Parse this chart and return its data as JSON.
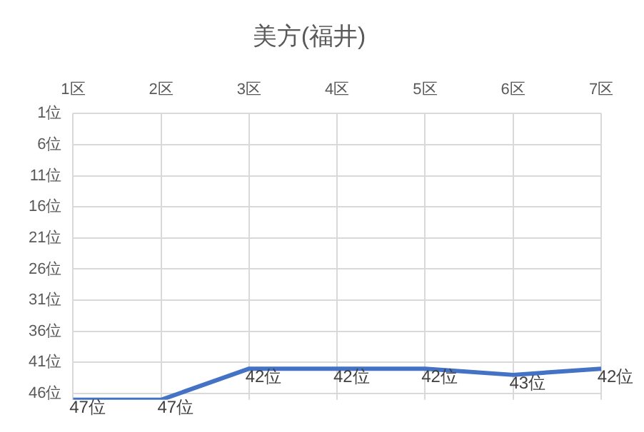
{
  "chart_data": {
    "type": "line",
    "title": "美方(福井)",
    "categories": [
      "1区",
      "2区",
      "3区",
      "4区",
      "5区",
      "6区",
      "7区"
    ],
    "series": [
      {
        "color": "#4472c4",
        "values": [
          47,
          47,
          42,
          42,
          42,
          43,
          42
        ],
        "value_labels": [
          "47位",
          "47位",
          "42位",
          "42位",
          "42位",
          "43位",
          "42位"
        ]
      }
    ],
    "ylim": [
      47,
      1
    ],
    "yticks": [
      {
        "value": 1,
        "label": "1位"
      },
      {
        "value": 6,
        "label": "6位"
      },
      {
        "value": 11,
        "label": "11位"
      },
      {
        "value": 16,
        "label": "16位"
      },
      {
        "value": 21,
        "label": "21位"
      },
      {
        "value": 26,
        "label": "26位"
      },
      {
        "value": 31,
        "label": "31位"
      },
      {
        "value": 36,
        "label": "36位"
      },
      {
        "value": 41,
        "label": "41位"
      },
      {
        "value": 46,
        "label": "46位"
      }
    ],
    "grid": true,
    "legend": false,
    "marker": "none",
    "line_style": "solid"
  }
}
